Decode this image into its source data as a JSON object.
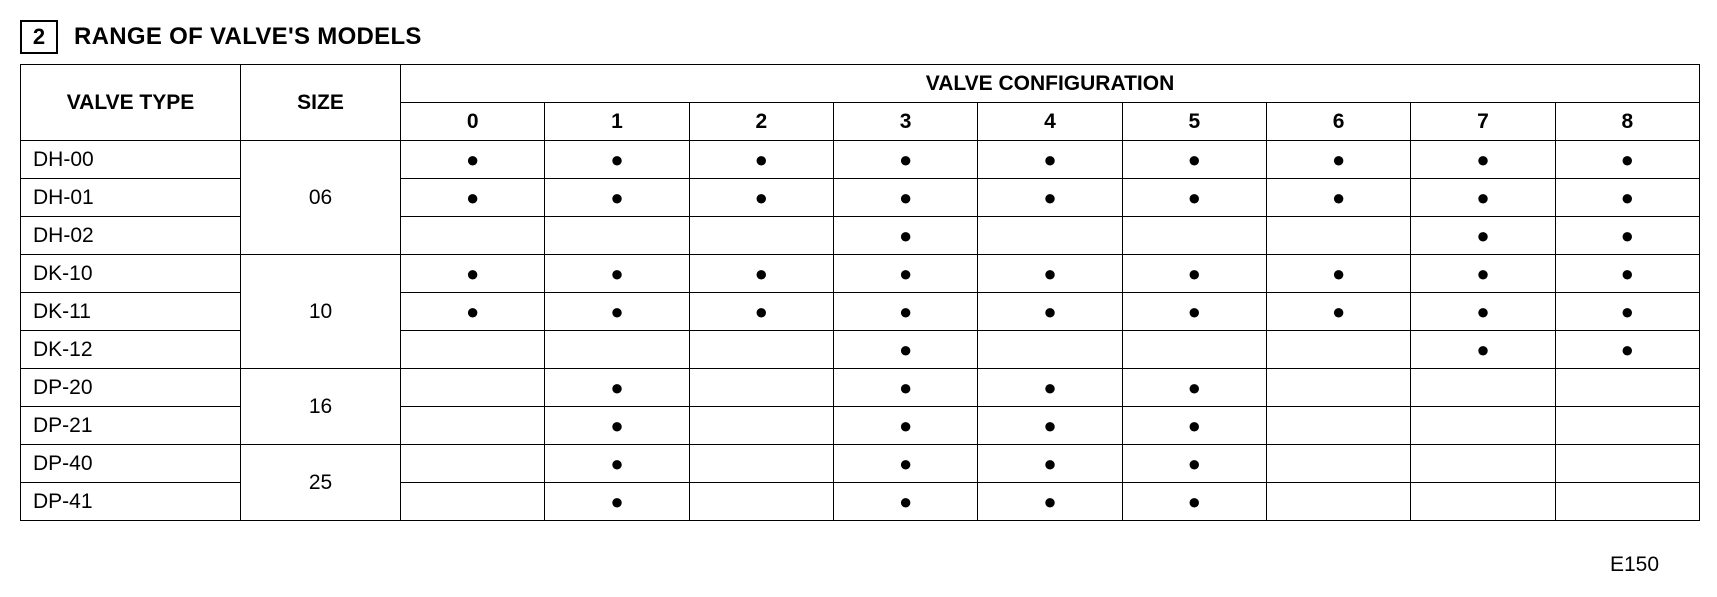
{
  "section_number": "2",
  "section_title": "RANGE OF VALVE'S MODELS",
  "headers": {
    "valve_type": "VALVE TYPE",
    "size": "SIZE",
    "config_group": "VALVE CONFIGURATION",
    "configs": [
      "0",
      "1",
      "2",
      "3",
      "4",
      "5",
      "6",
      "7",
      "8"
    ]
  },
  "dot_glyph": "●",
  "page_ref": "E150",
  "size_groups": [
    {
      "size": "06",
      "rows": [
        {
          "type": "DH-00",
          "cells": [
            true,
            true,
            true,
            true,
            true,
            true,
            true,
            true,
            true
          ]
        },
        {
          "type": "DH-01",
          "cells": [
            true,
            true,
            true,
            true,
            true,
            true,
            true,
            true,
            true
          ]
        },
        {
          "type": "DH-02",
          "cells": [
            false,
            false,
            false,
            true,
            false,
            false,
            false,
            true,
            true
          ]
        }
      ]
    },
    {
      "size": "10",
      "rows": [
        {
          "type": "DK-10",
          "cells": [
            true,
            true,
            true,
            true,
            true,
            true,
            true,
            true,
            true
          ]
        },
        {
          "type": "DK-11",
          "cells": [
            true,
            true,
            true,
            true,
            true,
            true,
            true,
            true,
            true
          ]
        },
        {
          "type": "DK-12",
          "cells": [
            false,
            false,
            false,
            true,
            false,
            false,
            false,
            true,
            true
          ]
        }
      ]
    },
    {
      "size": "16",
      "rows": [
        {
          "type": "DP-20",
          "cells": [
            false,
            true,
            false,
            true,
            true,
            true,
            false,
            false,
            false
          ]
        },
        {
          "type": "DP-21",
          "cells": [
            false,
            true,
            false,
            true,
            true,
            true,
            false,
            false,
            false
          ]
        }
      ]
    },
    {
      "size": "25",
      "rows": [
        {
          "type": "DP-40",
          "cells": [
            false,
            true,
            false,
            true,
            true,
            true,
            false,
            false,
            false
          ]
        },
        {
          "type": "DP-41",
          "cells": [
            false,
            true,
            false,
            true,
            true,
            true,
            false,
            false,
            false
          ]
        }
      ]
    }
  ]
}
